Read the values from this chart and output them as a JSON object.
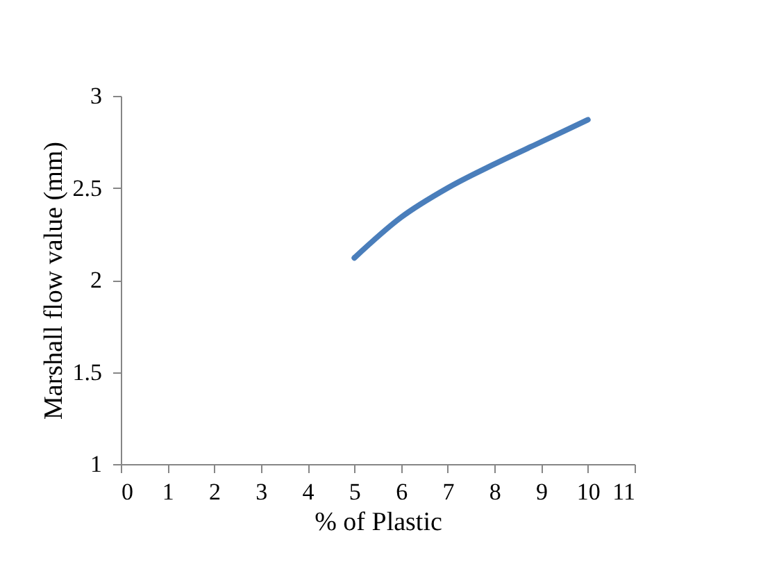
{
  "chart_data": {
    "type": "line",
    "xlabel": "% of Plastic",
    "ylabel": "Marshall flow value (mm)",
    "series": [
      {
        "color": "#4a7ebb",
        "x": [
          5,
          6,
          7,
          8,
          9,
          10
        ],
        "values": [
          2.12,
          2.34,
          2.5,
          2.63,
          2.75,
          2.87
        ]
      }
    ],
    "xlim": [
      0,
      11
    ],
    "xticks": [
      0,
      1,
      2,
      3,
      4,
      5,
      6,
      7,
      8,
      9,
      10,
      11
    ],
    "ylim": [
      1,
      3
    ],
    "yticks": [
      1,
      1.5,
      2,
      2.5,
      3
    ],
    "grid": false,
    "marker": "none",
    "line_style": "solid"
  }
}
